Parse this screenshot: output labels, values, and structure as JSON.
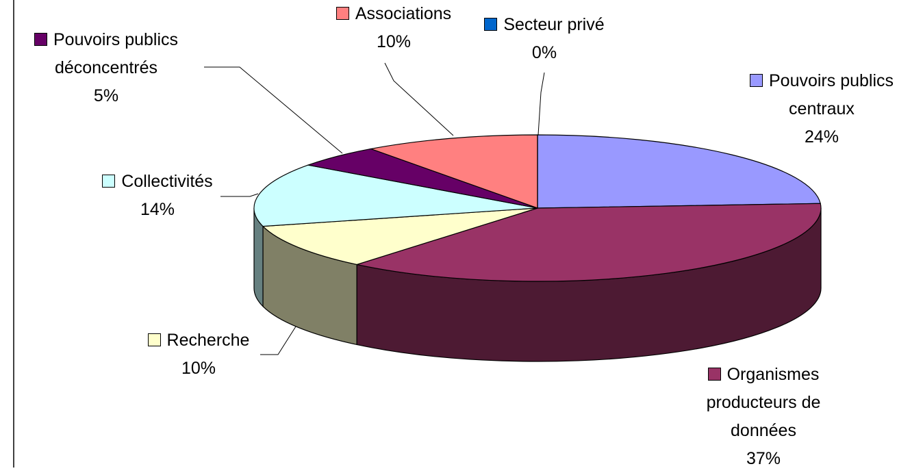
{
  "chart_data": {
    "type": "pie3d",
    "categories": [
      "Pouvoirs publics centraux",
      "Organismes producteurs de données",
      "Recherche",
      "Collectivités",
      "Pouvoirs publics déconcentrés",
      "Associations",
      "Secteur privé"
    ],
    "values": [
      24,
      37,
      10,
      14,
      5,
      10,
      0
    ],
    "value_labels": [
      "24%",
      "37%",
      "10%",
      "14%",
      "5%",
      "10%",
      "0%"
    ],
    "colors": [
      "#9999ff",
      "#993366",
      "#ffffcc",
      "#ccffff",
      "#660066",
      "#ff8080",
      "#0066cc"
    ]
  }
}
